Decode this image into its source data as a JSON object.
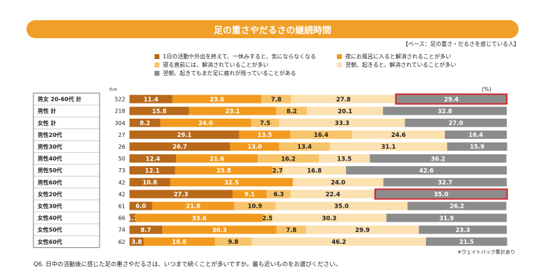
{
  "title": "足の重さやだるさの継続時間",
  "base_note": "【ベース：足の重さ・だるさを感じている人】",
  "n_label": "n=",
  "unit_label": "(%)",
  "foot_note": "※ウェイトバック集計あり",
  "question": "Q6. 日中の活動後に感じた足の重さやだるさは、いつまで続くことが多いですか。最も近いものをお選びください。",
  "legend": [
    {
      "label": "1日の活動や外出を終えて、一休みすると、気にならなくなる",
      "color": "#b8691a"
    },
    {
      "label": "夜にお風呂に入ると解消されることが多い",
      "color": "#f29a1e"
    },
    {
      "label": "寝る直前には、解消されていることが多い",
      "color": "#f8c46a"
    },
    {
      "label": "翌朝、起きると、解消されていることが多い",
      "color": "#fbe0b0"
    },
    {
      "label": "翌朝、起きてもまだ足に疲れが残っていることがある",
      "color": "#8c8c8c"
    }
  ],
  "chart_data": {
    "type": "bar",
    "stacked": true,
    "orientation": "horizontal",
    "unit": "%",
    "categories": [
      "男女 20-60代 計",
      "男性 計",
      "女性 計",
      "男性20代",
      "男性30代",
      "男性40代",
      "男性50代",
      "男性60代",
      "女性20代",
      "女性30代",
      "女性40代",
      "女性50代",
      "女性60代"
    ],
    "n": [
      522,
      218,
      304,
      27,
      26,
      50,
      73,
      42,
      42,
      61,
      66,
      74,
      62
    ],
    "series": [
      {
        "name": "1日の活動や外出を終えて、一休みすると、気にならなくなる",
        "values": [
          11.4,
          15.8,
          8.2,
          29.1,
          26.7,
          12.4,
          12.1,
          10.8,
          27.3,
          6.0,
          1.7,
          8.7,
          3.8
        ]
      },
      {
        "name": "夜にお風呂に入ると解消されることが多い",
        "values": [
          23.6,
          23.1,
          24.0,
          13.5,
          13.0,
          21.6,
          25.8,
          32.5,
          9.1,
          21.8,
          33.6,
          30.3,
          18.8
        ]
      },
      {
        "name": "寝る直前には、解消されていることが多い",
        "values": [
          7.8,
          8.2,
          7.5,
          16.4,
          13.4,
          16.2,
          2.7,
          0,
          6.3,
          10.9,
          2.5,
          7.8,
          9.8
        ]
      },
      {
        "name": "翌朝、起きると、解消されていることが多い",
        "values": [
          27.8,
          20.1,
          33.3,
          24.6,
          31.1,
          13.5,
          16.8,
          24.0,
          22.4,
          35.0,
          30.3,
          29.9,
          46.2
        ]
      },
      {
        "name": "翌朝、起きてもまだ足に疲れが残っていることがある",
        "values": [
          29.4,
          32.8,
          27.0,
          16.4,
          15.9,
          36.2,
          42.6,
          32.7,
          35.0,
          26.2,
          31.9,
          23.3,
          21.5
        ]
      }
    ],
    "label_colors": [
      "#ffffff",
      "#ffffff",
      "#222222",
      "#222222",
      "#ffffff"
    ],
    "highlighted": [
      {
        "row": "男女 20-60代 計",
        "series_index": 4
      },
      {
        "row": "女性20代",
        "series_index": 4
      }
    ],
    "highlight_color": "#d0202a",
    "xlim": [
      0,
      100
    ]
  }
}
